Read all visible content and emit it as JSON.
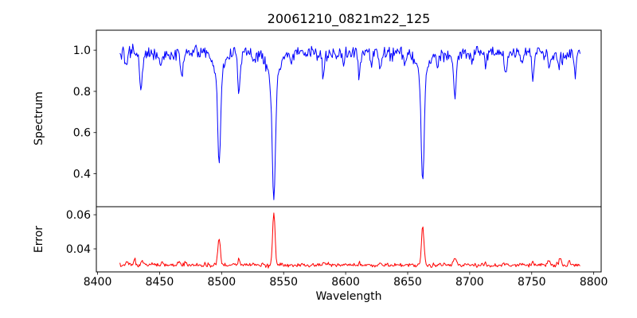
{
  "chart_data": {
    "type": "line",
    "title": "20061210_0821m22_125",
    "xlabel": "Wavelength",
    "grid": false,
    "legend": "none",
    "xlim": [
      8399,
      8806
    ],
    "x_start": 8418,
    "x_end": 8789,
    "n_points": 575,
    "noise_seed": 20061210,
    "x_ticks": [
      {
        "v": 8400,
        "label": "8400"
      },
      {
        "v": 8450,
        "label": "8450"
      },
      {
        "v": 8500,
        "label": "8500"
      },
      {
        "v": 8550,
        "label": "8550"
      },
      {
        "v": 8600,
        "label": "8600"
      },
      {
        "v": 8650,
        "label": "8650"
      },
      {
        "v": 8700,
        "label": "8700"
      },
      {
        "v": 8750,
        "label": "8750"
      },
      {
        "v": 8800,
        "label": "8800"
      }
    ],
    "panels": [
      {
        "id": "spectrum",
        "ylabel": "Spectrum",
        "ylim": [
          0.24,
          1.097
        ],
        "y_ticks": [
          {
            "v": 1.0,
            "label": "1.0"
          },
          {
            "v": 0.8,
            "label": "0.8"
          },
          {
            "v": 0.6,
            "label": "0.6"
          },
          {
            "v": 0.4,
            "label": "0.4"
          }
        ],
        "line_color": "#0000ff",
        "line_width": 1,
        "continuum": 0.985,
        "wiggle": {
          "amp": 0.006,
          "period": 47
        },
        "noise_sigma": 0.016,
        "absorption_lines": [
          {
            "center": 8423,
            "depth": 0.08,
            "sigma": 0.9
          },
          {
            "center": 8435,
            "depth": 0.19,
            "sigma": 1.0
          },
          {
            "center": 8451,
            "depth": 0.05,
            "sigma": 0.8
          },
          {
            "center": 8468,
            "depth": 0.135,
            "sigma": 1.0
          },
          {
            "center": 8498.0,
            "depth": 0.44,
            "sigma": 1.1
          },
          {
            "center": 8498.0,
            "depth": 0.1,
            "sigma": 4.0
          },
          {
            "center": 8514,
            "depth": 0.19,
            "sigma": 1.0
          },
          {
            "center": 8526,
            "depth": 0.05,
            "sigma": 0.8
          },
          {
            "center": 8542.1,
            "depth": 0.6,
            "sigma": 1.3
          },
          {
            "center": 8542.1,
            "depth": 0.12,
            "sigma": 5.0
          },
          {
            "center": 8556,
            "depth": 0.05,
            "sigma": 0.8
          },
          {
            "center": 8582,
            "depth": 0.11,
            "sigma": 0.9
          },
          {
            "center": 8598,
            "depth": 0.06,
            "sigma": 0.8
          },
          {
            "center": 8611,
            "depth": 0.12,
            "sigma": 0.9
          },
          {
            "center": 8621,
            "depth": 0.06,
            "sigma": 0.8
          },
          {
            "center": 8628,
            "depth": 0.07,
            "sigma": 0.8
          },
          {
            "center": 8648,
            "depth": 0.05,
            "sigma": 0.8
          },
          {
            "center": 8662.1,
            "depth": 0.53,
            "sigma": 1.2
          },
          {
            "center": 8662.1,
            "depth": 0.11,
            "sigma": 4.5
          },
          {
            "center": 8674,
            "depth": 0.06,
            "sigma": 0.8
          },
          {
            "center": 8688,
            "depth": 0.21,
            "sigma": 1.1
          },
          {
            "center": 8702,
            "depth": 0.05,
            "sigma": 0.8
          },
          {
            "center": 8713,
            "depth": 0.07,
            "sigma": 0.9
          },
          {
            "center": 8729,
            "depth": 0.11,
            "sigma": 0.9
          },
          {
            "center": 8742,
            "depth": 0.06,
            "sigma": 0.8
          },
          {
            "center": 8751,
            "depth": 0.13,
            "sigma": 0.9
          },
          {
            "center": 8764,
            "depth": 0.08,
            "sigma": 0.9
          },
          {
            "center": 8772,
            "depth": 0.06,
            "sigma": 0.8
          },
          {
            "center": 8785,
            "depth": 0.12,
            "sigma": 0.9
          }
        ]
      },
      {
        "id": "error",
        "ylabel": "Error",
        "ylim": [
          0.0265,
          0.0647
        ],
        "y_ticks": [
          {
            "v": 0.06,
            "label": "0.06"
          },
          {
            "v": 0.04,
            "label": "0.04"
          }
        ],
        "line_color": "#ff0000",
        "line_width": 1,
        "baseline": 0.0305,
        "noise_sigma": 0.0006,
        "peaks": [
          {
            "center": 8424,
            "height": 0.002,
            "sigma": 1.0
          },
          {
            "center": 8430,
            "height": 0.0035,
            "sigma": 0.7
          },
          {
            "center": 8436,
            "height": 0.003,
            "sigma": 0.8
          },
          {
            "center": 8452,
            "height": 0.0015,
            "sigma": 0.7
          },
          {
            "center": 8466,
            "height": 0.002,
            "sigma": 0.9
          },
          {
            "center": 8471,
            "height": 0.0018,
            "sigma": 0.7
          },
          {
            "center": 8498.0,
            "height": 0.0155,
            "sigma": 1.0
          },
          {
            "center": 8514,
            "height": 0.0035,
            "sigma": 0.8
          },
          {
            "center": 8542.1,
            "height": 0.031,
            "sigma": 1.0
          },
          {
            "center": 8556,
            "height": 0.001,
            "sigma": 0.7
          },
          {
            "center": 8582,
            "height": 0.0015,
            "sigma": 0.8
          },
          {
            "center": 8611,
            "height": 0.0015,
            "sigma": 0.8
          },
          {
            "center": 8628,
            "height": 0.001,
            "sigma": 0.7
          },
          {
            "center": 8662.1,
            "height": 0.023,
            "sigma": 1.0
          },
          {
            "center": 8688,
            "height": 0.004,
            "sigma": 0.9
          },
          {
            "center": 8713,
            "height": 0.001,
            "sigma": 0.7
          },
          {
            "center": 8729,
            "height": 0.0015,
            "sigma": 0.8
          },
          {
            "center": 8751,
            "height": 0.002,
            "sigma": 0.8
          },
          {
            "center": 8764,
            "height": 0.002,
            "sigma": 0.8
          },
          {
            "center": 8773,
            "height": 0.004,
            "sigma": 0.8
          },
          {
            "center": 8780,
            "height": 0.0028,
            "sigma": 0.8
          }
        ]
      }
    ],
    "colors": {
      "spectrum": "#0000ff",
      "error": "#ff0000",
      "axes": "#000000",
      "background": "#ffffff"
    }
  }
}
